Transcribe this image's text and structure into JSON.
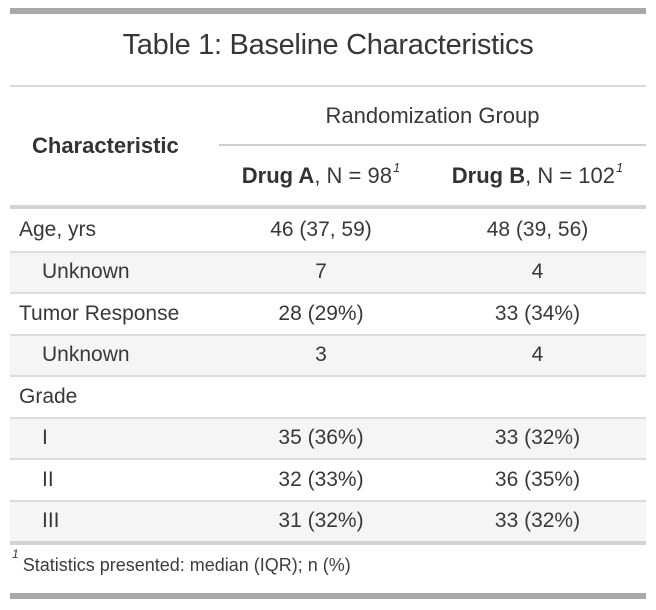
{
  "title": "Table 1: Baseline Characteristics",
  "table": {
    "stub_header": "Characteristic",
    "spanner": "Randomization Group",
    "columns": [
      {
        "name": "Drug A",
        "rest": ", N = 98",
        "footnote_mark": "1"
      },
      {
        "name": "Drug B",
        "rest": ", N = 102",
        "footnote_mark": "1"
      }
    ],
    "rows": [
      {
        "label": "Age, yrs",
        "drug_a": "46 (37, 59)",
        "drug_b": "48 (39, 56)"
      },
      {
        "label": "Unknown",
        "drug_a": "7",
        "drug_b": "4"
      },
      {
        "label": "Tumor Response",
        "drug_a": "28 (29%)",
        "drug_b": "33 (34%)"
      },
      {
        "label": "Unknown",
        "drug_a": "3",
        "drug_b": "4"
      },
      {
        "label": "Grade",
        "drug_a": "",
        "drug_b": ""
      },
      {
        "label": "I",
        "drug_a": "35 (36%)",
        "drug_b": "33 (32%)"
      },
      {
        "label": "II",
        "drug_a": "32 (33%)",
        "drug_b": "36 (35%)"
      },
      {
        "label": "III",
        "drug_a": "31 (32%)",
        "drug_b": "33 (32%)"
      }
    ],
    "footnote": {
      "mark": "1",
      "text": "Statistics presented: median (IQR); n (%)"
    }
  },
  "colors": {
    "accent_bar": "#a9a9a9",
    "stripe_background": "#f5f5f5",
    "row_divider": "#dcdcdc",
    "section_border": "#d2d2d2",
    "text": "#383838"
  },
  "chart_data": {
    "type": "table",
    "title": "Table 1: Baseline Characteristics",
    "spanner": "Randomization Group",
    "columns": [
      "Characteristic",
      "Drug A, N = 98",
      "Drug B, N = 102"
    ],
    "rows": [
      [
        "Age, yrs",
        "46 (37, 59)",
        "48 (39, 56)"
      ],
      [
        "Unknown",
        "7",
        "4"
      ],
      [
        "Tumor Response",
        "28 (29%)",
        "33 (34%)"
      ],
      [
        "Unknown",
        "3",
        "4"
      ],
      [
        "Grade",
        "",
        ""
      ],
      [
        "I",
        "35 (36%)",
        "33 (32%)"
      ],
      [
        "II",
        "32 (33%)",
        "36 (35%)"
      ],
      [
        "III",
        "31 (32%)",
        "33 (32%)"
      ]
    ],
    "footnote": "1 Statistics presented: median (IQR); n (%)"
  }
}
